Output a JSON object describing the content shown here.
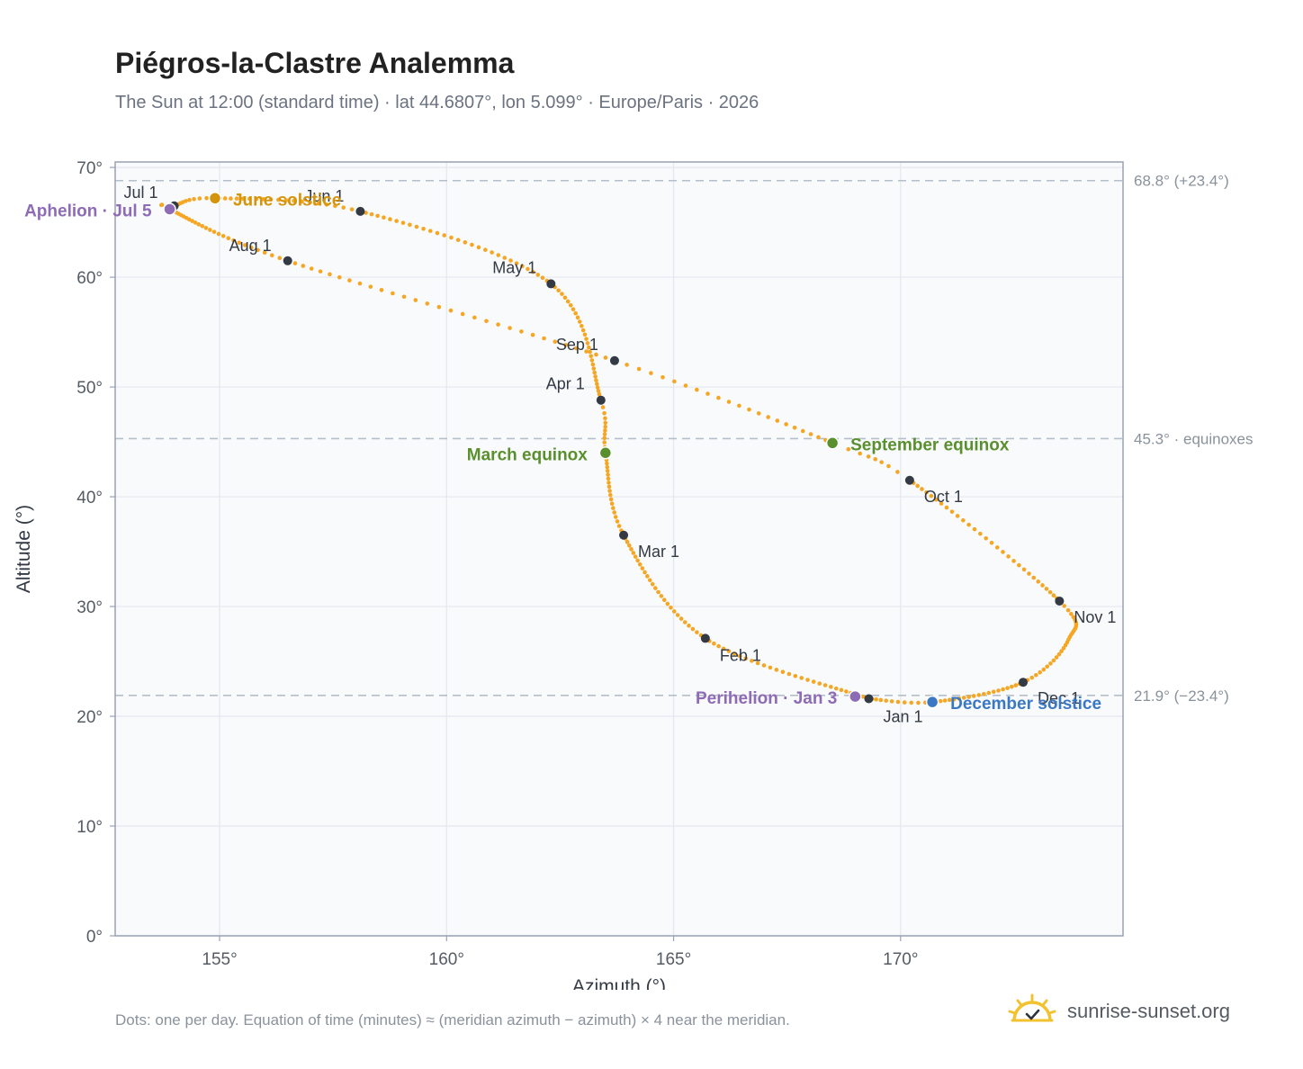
{
  "title": "Piégros-la-Clastre Analemma",
  "subtitle": "The Sun at 12:00 (standard time) · lat 44.6807°, lon 5.099° · Europe/Paris · 2026",
  "footnote": "Dots: one per day. Equation of time (minutes) ≈ (meridian azimuth − azimuth) × 4 near the meridian.",
  "brand": {
    "text": "sunrise-sunset.org",
    "icon": "sun-logo-icon"
  },
  "colors": {
    "curve": "#f5a623",
    "month_marker": "#333a44",
    "solstice_june": "#d4940c",
    "equinox": "#5a8f2e",
    "apsis": "#8e6bb5",
    "solstice_december": "#3a78c3",
    "reference_line": "#b5bfca",
    "plot_bg": "#f8fafc",
    "grid": "#e3e8ee",
    "frame": "#98a2b3"
  },
  "chart_data": {
    "type": "scatter",
    "title": "Piégros-la-Clastre Analemma",
    "xlabel": "Azimuth (°)",
    "ylabel": "Altitude (°)",
    "xlim": [
      152.7,
      174.9
    ],
    "ylim": [
      0,
      70.5
    ],
    "x_ticks": [
      155,
      160,
      165,
      170
    ],
    "x_tick_labels": [
      "155°",
      "160°",
      "165°",
      "170°"
    ],
    "y_ticks": [
      0,
      10,
      20,
      30,
      40,
      50,
      60,
      70
    ],
    "y_tick_labels": [
      "0°",
      "10°",
      "20°",
      "30°",
      "40°",
      "50°",
      "60°",
      "70°"
    ],
    "grid": true,
    "reference_lines": [
      {
        "y": 68.8,
        "label": "68.8° (+23.4°)"
      },
      {
        "y": 45.3,
        "label": "45.3° · equinoxes"
      },
      {
        "y": 21.9,
        "label": "21.9° (−23.4°)"
      }
    ],
    "month_markers": [
      {
        "label": "Jan 1",
        "azimuth": 169.3,
        "altitude": 21.6
      },
      {
        "label": "Feb 1",
        "azimuth": 165.7,
        "altitude": 27.1
      },
      {
        "label": "Mar 1",
        "azimuth": 163.9,
        "altitude": 36.5
      },
      {
        "label": "Apr 1",
        "azimuth": 163.4,
        "altitude": 48.8
      },
      {
        "label": "May 1",
        "azimuth": 162.3,
        "altitude": 59.4
      },
      {
        "label": "Jun 1",
        "azimuth": 158.1,
        "altitude": 66.0
      },
      {
        "label": "Jul 1",
        "azimuth": 154.0,
        "altitude": 66.5
      },
      {
        "label": "Aug 1",
        "azimuth": 156.5,
        "altitude": 61.5
      },
      {
        "label": "Sep 1",
        "azimuth": 163.7,
        "altitude": 52.4
      },
      {
        "label": "Oct 1",
        "azimuth": 170.2,
        "altitude": 41.5
      },
      {
        "label": "Nov 1",
        "azimuth": 173.5,
        "altitude": 30.5
      },
      {
        "label": "Dec 1",
        "azimuth": 172.7,
        "altitude": 23.1
      }
    ],
    "events": [
      {
        "label": "June solstice",
        "azimuth": 154.9,
        "altitude": 67.2,
        "kind": "solstice_june"
      },
      {
        "label": "Aphelion · Jul 5",
        "azimuth": 153.9,
        "altitude": 66.2,
        "kind": "apsis"
      },
      {
        "label": "March equinox",
        "azimuth": 163.5,
        "altitude": 44.0,
        "kind": "equinox"
      },
      {
        "label": "September equinox",
        "azimuth": 168.5,
        "altitude": 44.9,
        "kind": "equinox"
      },
      {
        "label": "Perihelion · Jan 3",
        "azimuth": 169.0,
        "altitude": 21.8,
        "kind": "apsis"
      },
      {
        "label": "December solstice",
        "azimuth": 170.7,
        "altitude": 21.3,
        "kind": "solstice_december"
      }
    ]
  }
}
